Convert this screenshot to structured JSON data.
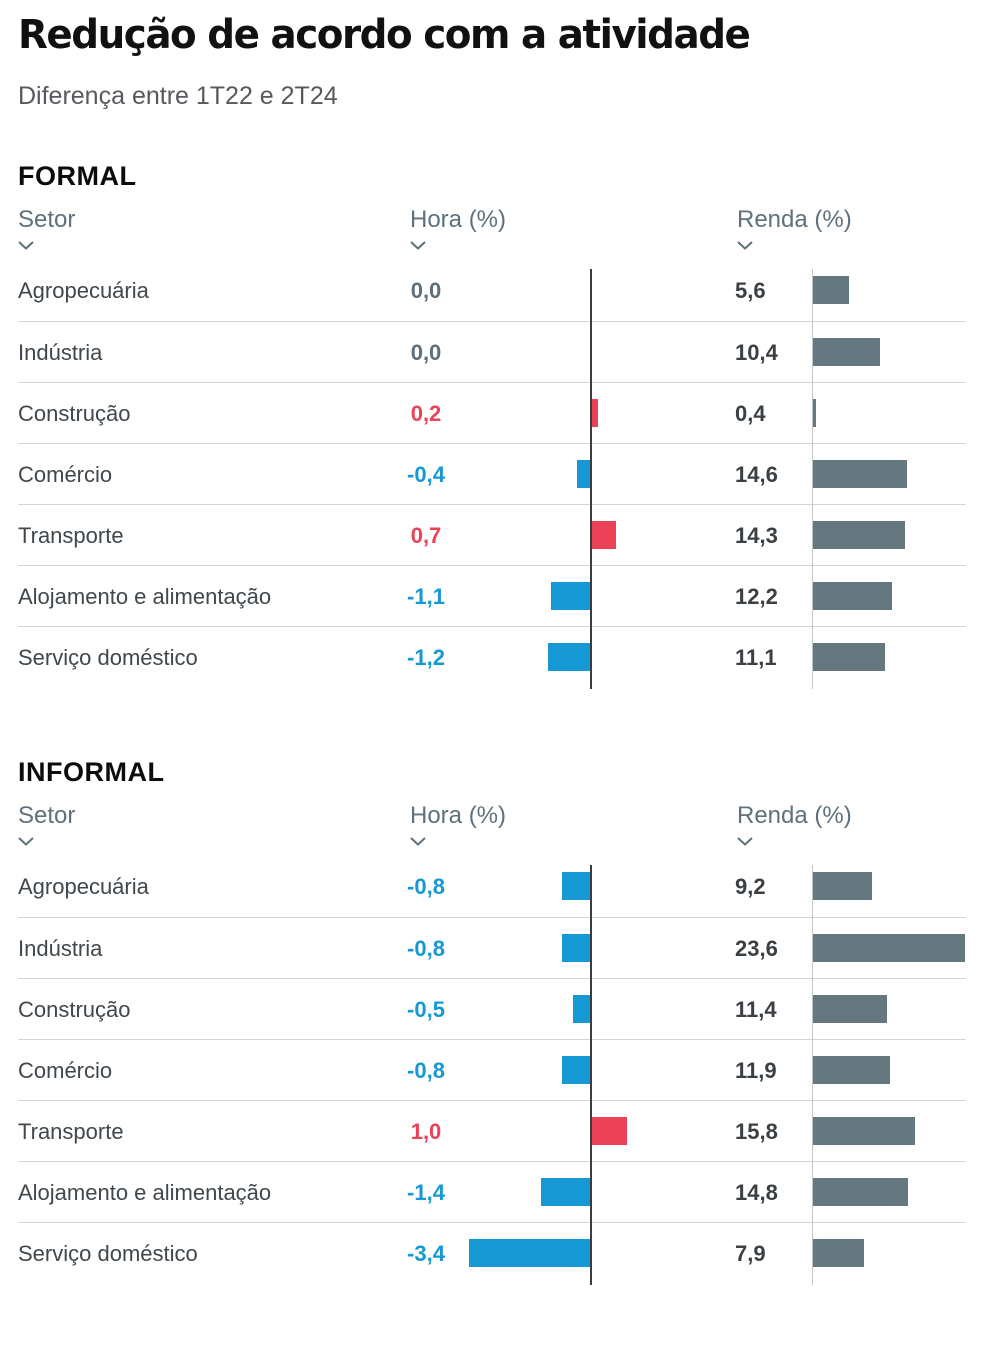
{
  "header": {
    "title": "Redução de acordo com a atividade",
    "subtitle": "Diferença entre 1T22 e 2T24"
  },
  "columns": {
    "sector": "Setor",
    "hora": "Hora (%)",
    "renda": "Renda (%)",
    "sort_icon": "chevron-down"
  },
  "colors": {
    "hora_positive": "#ec4257",
    "hora_negative": "#1598d4",
    "hora_zero_text": "#5d6f7a",
    "renda_bar": "#65787f",
    "renda_value_text": "#3b4045"
  },
  "sections": [
    {
      "name": "FORMAL",
      "rows": [
        {
          "sector": "Agropecuária",
          "hora_label": "0,0",
          "hora": 0.0,
          "renda_label": "5,6",
          "renda": 5.6
        },
        {
          "sector": "Indústria",
          "hora_label": "0,0",
          "hora": 0.0,
          "renda_label": "10,4",
          "renda": 10.4
        },
        {
          "sector": "Construção",
          "hora_label": "0,2",
          "hora": 0.2,
          "renda_label": "0,4",
          "renda": 0.4
        },
        {
          "sector": "Comércio",
          "hora_label": "-0,4",
          "hora": -0.4,
          "renda_label": "14,6",
          "renda": 14.6
        },
        {
          "sector": "Transporte",
          "hora_label": "0,7",
          "hora": 0.7,
          "renda_label": "14,3",
          "renda": 14.3
        },
        {
          "sector": "Alojamento e alimentação",
          "hora_label": "-1,1",
          "hora": -1.1,
          "renda_label": "12,2",
          "renda": 12.2
        },
        {
          "sector": "Serviço doméstico",
          "hora_label": "-1,2",
          "hora": -1.2,
          "renda_label": "11,1",
          "renda": 11.1
        }
      ]
    },
    {
      "name": "INFORMAL",
      "rows": [
        {
          "sector": "Agropecuária",
          "hora_label": "-0,8",
          "hora": -0.8,
          "renda_label": "9,2",
          "renda": 9.2
        },
        {
          "sector": "Indústria",
          "hora_label": "-0,8",
          "hora": -0.8,
          "renda_label": "23,6",
          "renda": 23.6
        },
        {
          "sector": "Construção",
          "hora_label": "-0,5",
          "hora": -0.5,
          "renda_label": "11,4",
          "renda": 11.4
        },
        {
          "sector": "Comércio",
          "hora_label": "-0,8",
          "hora": -0.8,
          "renda_label": "11,9",
          "renda": 11.9
        },
        {
          "sector": "Transporte",
          "hora_label": "1,0",
          "hora": 1.0,
          "renda_label": "15,8",
          "renda": 15.8
        },
        {
          "sector": "Alojamento e alimentação",
          "hora_label": "-1,4",
          "hora": -1.4,
          "renda_label": "14,8",
          "renda": 14.8
        },
        {
          "sector": "Serviço doméstico",
          "hora_label": "-3,4",
          "hora": -3.4,
          "renda_label": "7,9",
          "renda": 7.9
        }
      ]
    }
  ],
  "chart_data": [
    {
      "type": "bar",
      "title": "FORMAL",
      "orientation": "horizontal",
      "grid": false,
      "categories": [
        "Agropecuária",
        "Indústria",
        "Construção",
        "Comércio",
        "Transporte",
        "Alojamento e alimentação",
        "Serviço doméstico"
      ],
      "series": [
        {
          "name": "Hora (%)",
          "values": [
            0.0,
            0.0,
            0.2,
            -0.4,
            0.7,
            -1.1,
            -1.2
          ]
        },
        {
          "name": "Renda (%)",
          "values": [
            5.6,
            10.4,
            0.4,
            14.6,
            14.3,
            12.2,
            11.1
          ]
        }
      ]
    },
    {
      "type": "bar",
      "title": "INFORMAL",
      "orientation": "horizontal",
      "grid": false,
      "categories": [
        "Agropecuária",
        "Indústria",
        "Construção",
        "Comércio",
        "Transporte",
        "Alojamento e alimentação",
        "Serviço doméstico"
      ],
      "series": [
        {
          "name": "Hora (%)",
          "values": [
            -0.8,
            -0.8,
            -0.5,
            -0.8,
            1.0,
            -1.4,
            -3.4
          ]
        },
        {
          "name": "Renda (%)",
          "values": [
            9.2,
            23.6,
            11.4,
            11.9,
            15.8,
            14.8,
            7.9
          ]
        }
      ]
    }
  ]
}
